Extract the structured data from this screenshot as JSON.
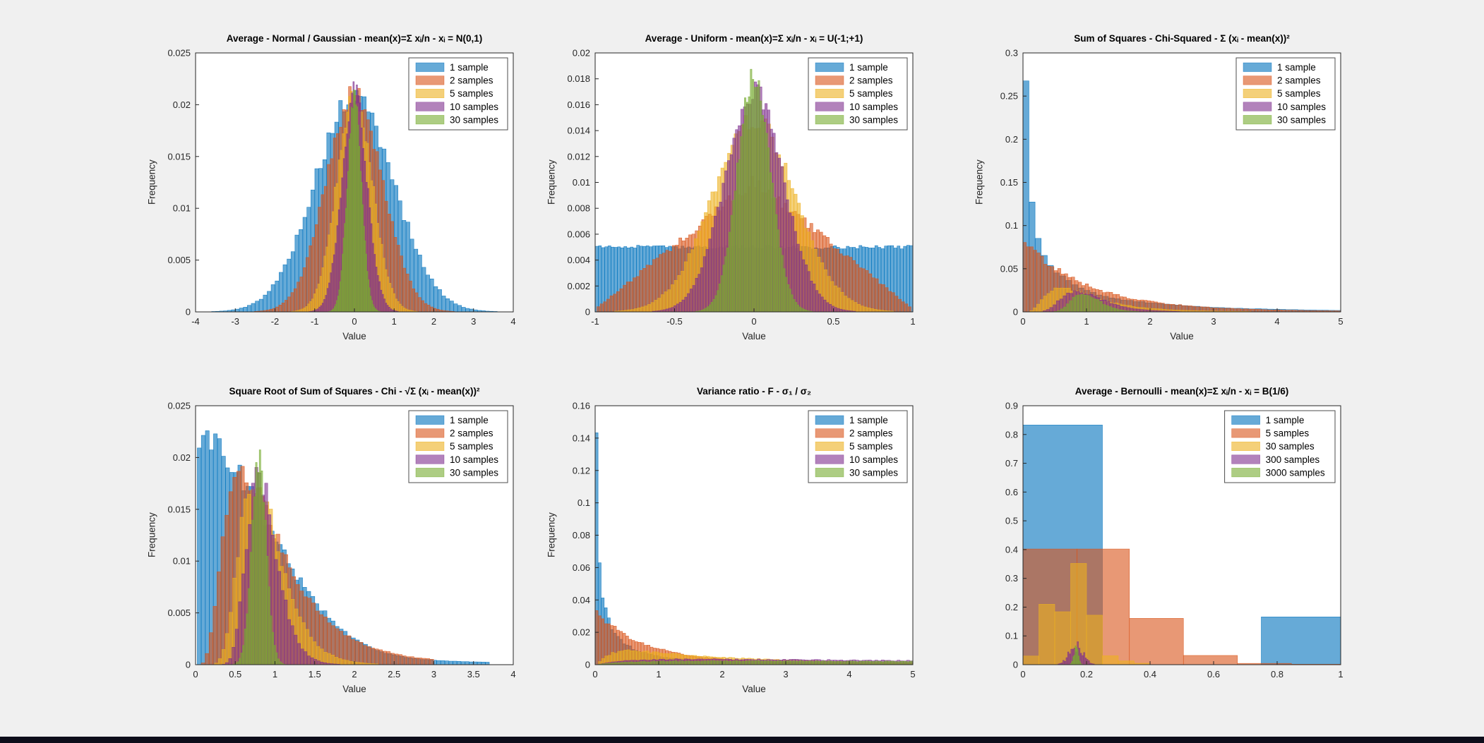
{
  "figure": {
    "background": "#f0f0f0",
    "bottom_bar_color": "#0d0d1a"
  },
  "palette": {
    "blue": "#0072BD",
    "orange": "#D95319",
    "yellow": "#EDB120",
    "purple": "#7E2F8E",
    "green": "#77AC30"
  },
  "axis_style": {
    "text_color": "#262626",
    "box_color": "#262626",
    "plot_background": "#ffffff",
    "legend_border": "#4d4d4d"
  },
  "chart_data": [
    {
      "id": "normal-average",
      "type": "bar",
      "title": "Average - Normal / Gaussian - mean(x)=Σ xᵢ/n - xᵢ = N(0,1)",
      "xlabel": "Value",
      "ylabel": "Frequency",
      "xlim": [
        -4,
        4
      ],
      "ylim": [
        0,
        0.025
      ],
      "xticks": [
        -4,
        -3,
        -2,
        -1,
        0,
        1,
        2,
        3,
        4
      ],
      "xtick_labels": [
        "-4",
        "-3",
        "-2",
        "-1",
        "0",
        "1",
        "2",
        "3",
        "4"
      ],
      "yticks": [
        0,
        0.005,
        0.01,
        0.015,
        0.02,
        0.025
      ],
      "ytick_labels": [
        "0",
        "0.005",
        "0.01",
        "0.015",
        "0.02",
        "0.025"
      ],
      "grid": false,
      "legend_position": "top-right",
      "series": [
        {
          "name": "1 sample",
          "color": "blue",
          "shape": "gauss",
          "center": 0,
          "sigma": 1.0,
          "peak": 0.0205,
          "range": [
            -3.7,
            3.7
          ],
          "bins": 74,
          "jitter": 0.06
        },
        {
          "name": "2 samples",
          "color": "orange",
          "shape": "gauss",
          "center": 0,
          "sigma": 0.707,
          "peak": 0.021,
          "range": [
            -2.75,
            2.75
          ],
          "bins": 72,
          "jitter": 0.05
        },
        {
          "name": "5 samples",
          "color": "yellow",
          "shape": "gauss",
          "center": 0,
          "sigma": 0.447,
          "peak": 0.021,
          "range": [
            -1.8,
            1.8
          ],
          "bins": 70,
          "jitter": 0.05
        },
        {
          "name": "10 samples",
          "color": "purple",
          "shape": "gauss",
          "center": 0,
          "sigma": 0.316,
          "peak": 0.0212,
          "range": [
            -1.35,
            1.35
          ],
          "bins": 66,
          "jitter": 0.06
        },
        {
          "name": "30 samples",
          "color": "green",
          "shape": "gauss",
          "center": 0,
          "sigma": 0.183,
          "peak": 0.0205,
          "range": [
            -0.8,
            0.8
          ],
          "bins": 56,
          "jitter": 0.05
        }
      ]
    },
    {
      "id": "uniform-average",
      "type": "bar",
      "title": "Average - Uniform - mean(x)=Σ xᵢ/n - xᵢ = U(-1;+1)",
      "xlabel": "Value",
      "ylabel": "Frequency",
      "xlim": [
        -1,
        1
      ],
      "ylim": [
        0,
        0.02
      ],
      "xticks": [
        -1,
        -0.5,
        0,
        0.5,
        1
      ],
      "xtick_labels": [
        "-1",
        "-0.5",
        "0",
        "0.5",
        "1"
      ],
      "yticks": [
        0,
        0.002,
        0.004,
        0.006,
        0.008,
        0.01,
        0.012,
        0.014,
        0.016,
        0.018,
        0.02
      ],
      "ytick_labels": [
        "0",
        "0.002",
        "0.004",
        "0.006",
        "0.008",
        "0.01",
        "0.012",
        "0.014",
        "0.016",
        "0.018",
        "0.02"
      ],
      "grid": false,
      "legend_position": "top-right",
      "series": [
        {
          "name": "1 sample",
          "color": "blue",
          "shape": "flat",
          "peak": 0.005,
          "range": [
            -1,
            1
          ],
          "bins": 100,
          "jitter": 0.03
        },
        {
          "name": "2 samples",
          "color": "orange",
          "shape": "triangle",
          "center": 0,
          "halfwidth": 1.02,
          "peak": 0.0101,
          "range": [
            -0.99,
            0.99
          ],
          "bins": 96,
          "jitter": 0.05
        },
        {
          "name": "5 samples",
          "color": "yellow",
          "shape": "gauss",
          "center": 0,
          "sigma": 0.26,
          "peak": 0.0148,
          "range": [
            -0.88,
            0.88
          ],
          "bins": 84,
          "jitter": 0.05
        },
        {
          "name": "10 samples",
          "color": "purple",
          "shape": "gauss",
          "center": 0,
          "sigma": 0.185,
          "peak": 0.017,
          "range": [
            -0.64,
            0.64
          ],
          "bins": 76,
          "jitter": 0.05
        },
        {
          "name": "30 samples",
          "color": "green",
          "shape": "gauss",
          "center": 0,
          "sigma": 0.105,
          "peak": 0.0182,
          "range": [
            -0.37,
            0.37
          ],
          "bins": 60,
          "jitter": 0.05
        }
      ]
    },
    {
      "id": "chi-squared-sum-of-squares",
      "type": "bar",
      "title": "Sum of Squares - Chi-Squared - Σ (xᵢ - mean(x))²",
      "xlabel": "Value",
      "ylabel": "Frequency",
      "xlim": [
        0,
        5
      ],
      "ylim": [
        0,
        0.3
      ],
      "xticks": [
        0,
        1,
        2,
        3,
        4,
        5
      ],
      "xtick_labels": [
        "0",
        "1",
        "2",
        "3",
        "4",
        "5"
      ],
      "yticks": [
        0,
        0.05,
        0.1,
        0.15,
        0.2,
        0.25,
        0.3
      ],
      "ytick_labels": [
        "0",
        "0.05",
        "0.1",
        "0.15",
        "0.2",
        "0.25",
        "0.3"
      ],
      "grid": false,
      "legend_position": "top-right",
      "series": [
        {
          "name": "1 sample",
          "color": "blue",
          "shape": "decay",
          "x0": 0.05,
          "p": 0.7,
          "tau": 2.2,
          "peak": 0.277,
          "range": [
            0,
            5
          ],
          "bins": 52,
          "floorAmp": 0.004,
          "floorTau": 2.5,
          "jitter": 0.06
        },
        {
          "name": "2 samples",
          "color": "orange",
          "shape": "decay",
          "x0": 0.03,
          "p": 0,
          "tau": 1.0,
          "peak": 0.078,
          "range": [
            0,
            5
          ],
          "bins": 92,
          "floorAmp": 0.002,
          "floorTau": 4,
          "jitter": 0.07
        },
        {
          "name": "5 samples",
          "color": "yellow",
          "shape": "lognormal",
          "mode": 0.6,
          "s": 0.62,
          "peak": 0.028,
          "range": [
            0,
            4.5
          ],
          "bins": 84,
          "jitter": 0.07
        },
        {
          "name": "10 samples",
          "color": "purple",
          "shape": "lognormal",
          "mode": 0.85,
          "s": 0.38,
          "peak": 0.0235,
          "range": [
            0.05,
            3
          ],
          "bins": 56,
          "jitter": 0.08
        },
        {
          "name": "30 samples",
          "color": "green",
          "shape": "lognormal",
          "mode": 0.95,
          "s": 0.23,
          "peak": 0.021,
          "range": [
            0.3,
            2.2
          ],
          "bins": 40,
          "jitter": 0.08
        }
      ]
    },
    {
      "id": "chi-sqrt-sum-of-squares",
      "type": "bar",
      "title": "Square Root of Sum of Squares - Chi - √Σ (xᵢ - mean(x))²",
      "xlabel": "Value",
      "ylabel": "Frequency",
      "xlim": [
        0,
        4
      ],
      "ylim": [
        0,
        0.025
      ],
      "xticks": [
        0,
        0.5,
        1,
        1.5,
        2,
        2.5,
        3,
        3.5,
        4
      ],
      "xtick_labels": [
        "0",
        "0.5",
        "1",
        "1.5",
        "2",
        "2.5",
        "3",
        "3.5",
        "4"
      ],
      "yticks": [
        0,
        0.005,
        0.01,
        0.015,
        0.02,
        0.025
      ],
      "ytick_labels": [
        "0",
        "0.005",
        "0.01",
        "0.015",
        "0.02",
        "0.025"
      ],
      "grid": false,
      "legend_position": "top-right",
      "series": [
        {
          "name": "1 sample",
          "color": "blue",
          "shape": "halfnormal",
          "sigma": 0.92,
          "peak": 0.0205,
          "range": [
            0.02,
            3.7
          ],
          "bins": 72,
          "floorAmp": 0.0015,
          "floorTau": 2.0,
          "jitter": 0.06
        },
        {
          "name": "2 samples",
          "color": "orange",
          "shape": "lognormal",
          "mode": 0.6,
          "s": 0.6,
          "peak": 0.0182,
          "range": [
            0.02,
            3.0
          ],
          "bins": 60,
          "jitter": 0.06
        },
        {
          "name": "5 samples",
          "color": "yellow",
          "shape": "lognormal",
          "mode": 0.75,
          "s": 0.34,
          "peak": 0.0178,
          "range": [
            0.1,
            2.3
          ],
          "bins": 48,
          "jitter": 0.07
        },
        {
          "name": "10 samples",
          "color": "purple",
          "shape": "lognormal",
          "mode": 0.8,
          "s": 0.235,
          "peak": 0.0182,
          "range": [
            0.25,
            1.9
          ],
          "bins": 40,
          "jitter": 0.08
        },
        {
          "name": "30 samples",
          "color": "green",
          "shape": "gauss",
          "center": 0.8,
          "sigma": 0.092,
          "peak": 0.0196,
          "range": [
            0.45,
            1.15
          ],
          "bins": 30,
          "jitter": 0.08
        }
      ]
    },
    {
      "id": "f-variance-ratio",
      "type": "bar",
      "title": "Variance ratio - F - σ₁ / σ₂",
      "xlabel": "Value",
      "ylabel": "Frequency",
      "xlim": [
        0,
        5
      ],
      "ylim": [
        0,
        0.16
      ],
      "xticks": [
        0,
        1,
        2,
        3,
        4,
        5
      ],
      "xtick_labels": [
        "0",
        "1",
        "2",
        "3",
        "4",
        "5"
      ],
      "yticks": [
        0,
        0.02,
        0.04,
        0.06,
        0.08,
        0.1,
        0.12,
        0.14,
        0.16
      ],
      "ytick_labels": [
        "0",
        "0.02",
        "0.04",
        "0.06",
        "0.08",
        "0.1",
        "0.12",
        "0.14",
        "0.16"
      ],
      "grid": false,
      "legend_position": "top-right",
      "series": [
        {
          "name": "1 sample",
          "color": "blue",
          "shape": "decay",
          "x0": 0.025,
          "p": 0.7,
          "tau": 1.0,
          "peak": 0.1405,
          "range": [
            0,
            5
          ],
          "bins": 104,
          "floorAmp": 0.0015,
          "floorTau": 5,
          "jitter": 0.07
        },
        {
          "name": "2 samples",
          "color": "orange",
          "shape": "decay",
          "x0": 0.02,
          "p": 0,
          "tau": 0.75,
          "peak": 0.0305,
          "range": [
            0,
            5
          ],
          "bins": 104,
          "floorAmp": 0.002,
          "floorTau": 5,
          "jitter": 0.07
        },
        {
          "name": "5 samples",
          "color": "yellow",
          "shape": "lognormal",
          "mode": 0.55,
          "s": 1.15,
          "peak": 0.0085,
          "range": [
            0,
            5
          ],
          "bins": 100,
          "jitter": 0.09
        },
        {
          "name": "10 samples",
          "color": "purple",
          "shape": "lognormal",
          "mode": 1.6,
          "s": 1.5,
          "peak": 0.0033,
          "range": [
            0,
            5
          ],
          "bins": 100,
          "jitter": 0.12
        },
        {
          "name": "30 samples",
          "color": "green",
          "shape": "lognormal",
          "mode": 2.2,
          "s": 1.7,
          "peak": 0.0022,
          "range": [
            0.05,
            5
          ],
          "bins": 100,
          "jitter": 0.12
        }
      ]
    },
    {
      "id": "bernoulli-average",
      "type": "bar",
      "title": "Average - Bernoulli - mean(x)=Σ xᵢ/n - xᵢ = B(1/6)",
      "xlabel": "",
      "ylabel": "",
      "xlim": [
        0,
        1
      ],
      "ylim": [
        0,
        0.9
      ],
      "xticks": [
        0,
        0.2,
        0.4,
        0.6,
        0.8,
        1
      ],
      "xtick_labels": [
        "0",
        "0.2",
        "0.4",
        "0.6",
        "0.8",
        "1"
      ],
      "yticks": [
        0,
        0.1,
        0.2,
        0.3,
        0.4,
        0.5,
        0.6,
        0.7,
        0.8,
        0.9
      ],
      "ytick_labels": [
        "0",
        "0.1",
        "0.2",
        "0.3",
        "0.4",
        "0.5",
        "0.6",
        "0.7",
        "0.8",
        "0.9"
      ],
      "grid": false,
      "legend_position": "top-right",
      "series": [
        {
          "name": "1 sample",
          "color": "blue",
          "bars": [
            [
              0,
              0.25,
              0.833
            ],
            [
              0.75,
              1,
              0.166
            ]
          ]
        },
        {
          "name": "5 samples",
          "color": "orange",
          "bars": [
            [
              0,
              0.17,
              0.402
            ],
            [
              0.17,
              0.335,
              0.402
            ],
            [
              0.335,
              0.505,
              0.161
            ],
            [
              0.505,
              0.675,
              0.032
            ],
            [
              0.675,
              0.845,
              0.0045
            ],
            [
              0.845,
              1,
              0.0015
            ]
          ]
        },
        {
          "name": "30 samples",
          "color": "yellow",
          "bars": [
            [
              0,
              0.05,
              0.03
            ],
            [
              0.05,
              0.1,
              0.21
            ],
            [
              0.1,
              0.15,
              0.184
            ],
            [
              0.15,
              0.2,
              0.352
            ],
            [
              0.2,
              0.25,
              0.172
            ],
            [
              0.25,
              0.3,
              0.031
            ],
            [
              0.3,
              0.35,
              0.013
            ],
            [
              0.35,
              0.4,
              0.005
            ]
          ]
        },
        {
          "name": "300 samples",
          "color": "purple",
          "shape": "gauss",
          "center": 0.167,
          "sigma": 0.021,
          "peak": 0.066,
          "range": [
            0.105,
            0.235
          ],
          "bins": 26,
          "jitter": 0.35
        },
        {
          "name": "3000 samples",
          "color": "green",
          "shape": "gauss",
          "center": 0.167,
          "sigma": 0.0068,
          "peak": 0.062,
          "range": [
            0.142,
            0.192
          ],
          "bins": 14,
          "jitter": 0.3
        }
      ]
    }
  ]
}
